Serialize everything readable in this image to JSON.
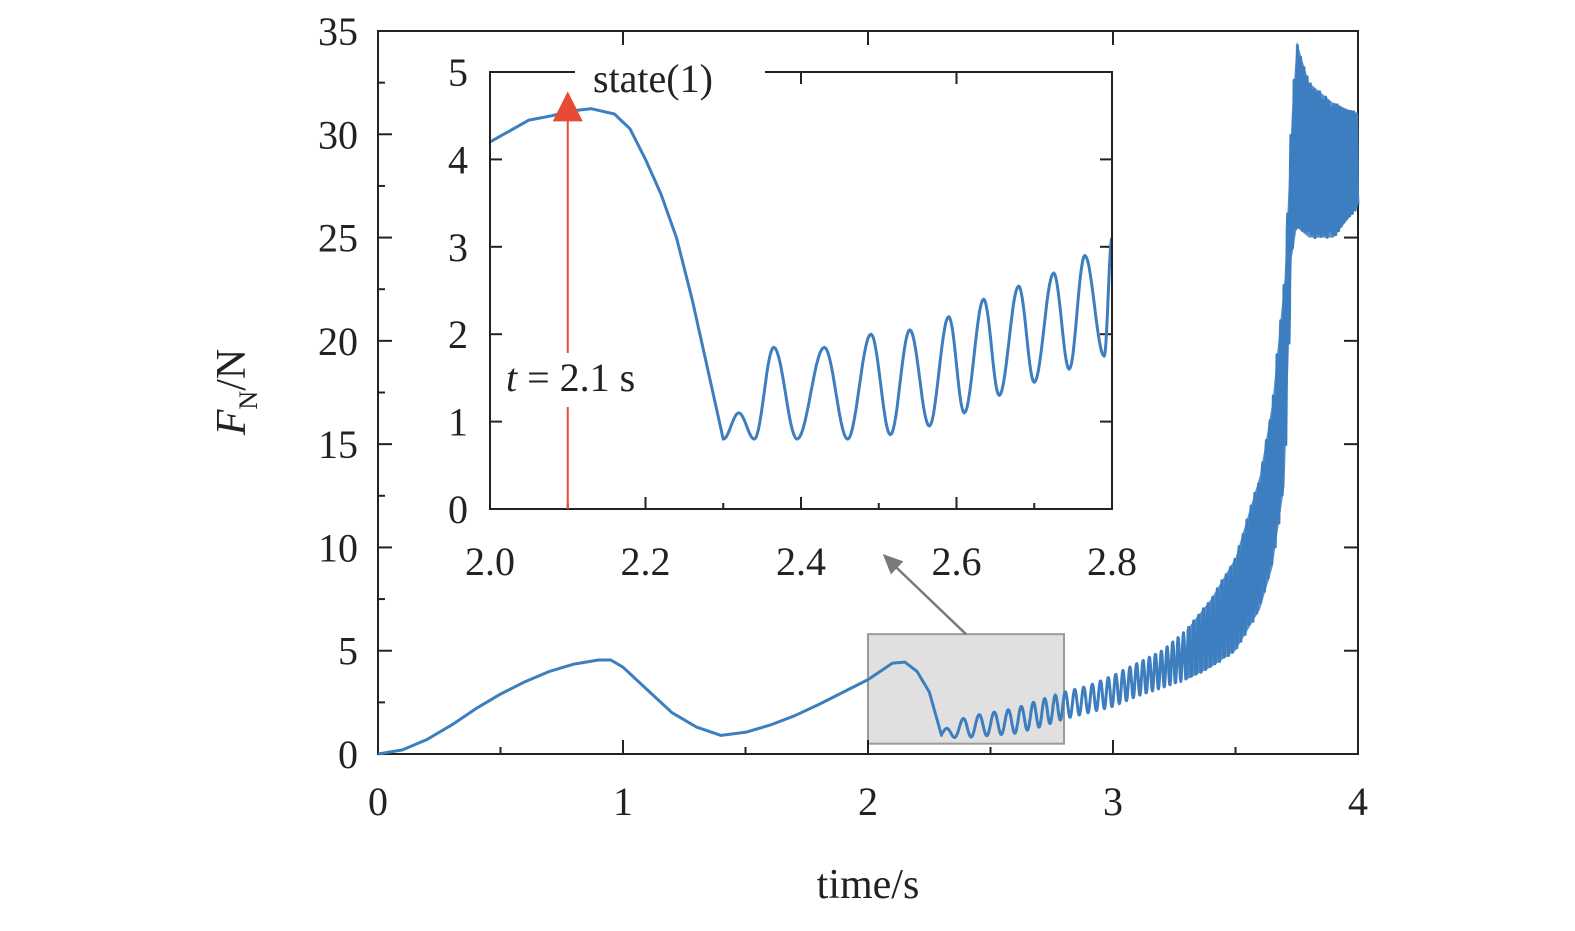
{
  "colors": {
    "series": "#3d7ebf",
    "marker": "#e84a33",
    "zoom_box_fill": "#e0e0e0",
    "zoom_box_stroke": "#9a9a9a",
    "pointer": "#7a7a7a",
    "axis": "#222222"
  },
  "chart_data": [
    {
      "id": "main",
      "type": "line",
      "title": "",
      "xlabel": "time/s",
      "ylabel_main": "F",
      "ylabel_sub": "N",
      "ylabel_tail": "/N",
      "xlim": [
        0,
        4
      ],
      "ylim": [
        0,
        35
      ],
      "xticks": [
        0,
        1,
        2,
        3,
        4
      ],
      "yticks": [
        0,
        5,
        10,
        15,
        20,
        25,
        30,
        35
      ],
      "series": [
        {
          "name": "F_N",
          "description": "normal force vs time",
          "smooth_points": [
            [
              0.0,
              0.0
            ],
            [
              0.1,
              0.2
            ],
            [
              0.2,
              0.7
            ],
            [
              0.3,
              1.4
            ],
            [
              0.4,
              2.2
            ],
            [
              0.5,
              2.9
            ],
            [
              0.6,
              3.5
            ],
            [
              0.7,
              4.0
            ],
            [
              0.8,
              4.35
            ],
            [
              0.9,
              4.55
            ],
            [
              0.95,
              4.55
            ],
            [
              1.0,
              4.2
            ],
            [
              1.1,
              3.1
            ],
            [
              1.2,
              2.0
            ],
            [
              1.3,
              1.3
            ],
            [
              1.4,
              0.9
            ],
            [
              1.5,
              1.05
            ],
            [
              1.6,
              1.4
            ],
            [
              1.7,
              1.85
            ],
            [
              1.8,
              2.4
            ],
            [
              1.9,
              3.0
            ],
            [
              2.0,
              3.6
            ],
            [
              2.1,
              4.4
            ],
            [
              2.15,
              4.45
            ],
            [
              2.2,
              4.0
            ],
            [
              2.25,
              3.0
            ],
            [
              2.3,
              0.9
            ]
          ],
          "oscillation": {
            "t_start": 2.3,
            "t_end": 4.0,
            "description": "growing oscillation; envelope (t, min, max)",
            "envelope": [
              [
                2.3,
                0.8,
                1.1
              ],
              [
                2.4,
                0.8,
                1.8
              ],
              [
                2.5,
                0.9,
                2.0
              ],
              [
                2.6,
                1.0,
                2.2
              ],
              [
                2.7,
                1.3,
                2.6
              ],
              [
                2.8,
                1.7,
                3.0
              ],
              [
                2.9,
                2.0,
                3.3
              ],
              [
                3.0,
                2.3,
                3.8
              ],
              [
                3.1,
                2.8,
                4.4
              ],
              [
                3.2,
                3.2,
                5.0
              ],
              [
                3.3,
                3.6,
                6.0
              ],
              [
                3.4,
                4.2,
                7.5
              ],
              [
                3.5,
                5.0,
                9.5
              ],
              [
                3.6,
                7.0,
                13.5
              ],
              [
                3.65,
                9.0,
                17.0
              ],
              [
                3.7,
                13.0,
                23.0
              ],
              [
                3.73,
                24.0,
                31.0
              ],
              [
                3.75,
                25.5,
                34.5
              ],
              [
                3.8,
                25.0,
                32.5
              ],
              [
                3.9,
                25.0,
                31.5
              ],
              [
                4.0,
                26.5,
                31.0
              ]
            ]
          }
        }
      ],
      "zoom_box": {
        "x": [
          2.0,
          2.8
        ],
        "y": [
          0.5,
          5.8
        ]
      }
    },
    {
      "id": "inset",
      "type": "line",
      "title": "",
      "xlim": [
        2.0,
        2.8
      ],
      "ylim": [
        0,
        5
      ],
      "xticks": [
        2.0,
        2.2,
        2.4,
        2.6,
        2.8
      ],
      "xtick_labels": [
        "2.0",
        "2.2",
        "2.4",
        "2.6",
        "2.8"
      ],
      "yticks": [
        0,
        1,
        2,
        3,
        4,
        5
      ],
      "series": [
        {
          "name": "F_N zoom",
          "smooth_points": [
            [
              2.0,
              4.2
            ],
            [
              2.02,
              4.3
            ],
            [
              2.05,
              4.45
            ],
            [
              2.08,
              4.5
            ],
            [
              2.1,
              4.55
            ],
            [
              2.13,
              4.58
            ],
            [
              2.16,
              4.52
            ],
            [
              2.18,
              4.35
            ],
            [
              2.2,
              4.0
            ],
            [
              2.22,
              3.6
            ],
            [
              2.24,
              3.1
            ],
            [
              2.26,
              2.4
            ],
            [
              2.28,
              1.6
            ],
            [
              2.3,
              0.8
            ]
          ],
          "oscillation": {
            "t_start": 2.3,
            "t_end": 2.8,
            "period": 0.053,
            "description": "peaks/troughs of oscillating force",
            "peaks": [
              [
                2.32,
                1.1
              ],
              [
                2.365,
                1.85
              ],
              [
                2.43,
                1.85
              ],
              [
                2.49,
                2.0
              ],
              [
                2.54,
                2.05
              ],
              [
                2.59,
                2.2
              ],
              [
                2.635,
                2.4
              ],
              [
                2.68,
                2.55
              ],
              [
                2.725,
                2.7
              ],
              [
                2.765,
                2.9
              ],
              [
                2.8,
                3.1
              ]
            ],
            "troughs": [
              [
                2.3,
                0.8
              ],
              [
                2.34,
                0.8
              ],
              [
                2.395,
                0.8
              ],
              [
                2.46,
                0.8
              ],
              [
                2.515,
                0.85
              ],
              [
                2.565,
                0.95
              ],
              [
                2.61,
                1.1
              ],
              [
                2.655,
                1.3
              ],
              [
                2.7,
                1.45
              ],
              [
                2.745,
                1.6
              ],
              [
                2.79,
                1.75
              ]
            ]
          }
        }
      ],
      "annotations": {
        "legend_text": "state(1)",
        "marker_time": 2.1,
        "marker_label_italic": "t",
        "marker_label_rest": " = 2.1 s"
      }
    }
  ]
}
